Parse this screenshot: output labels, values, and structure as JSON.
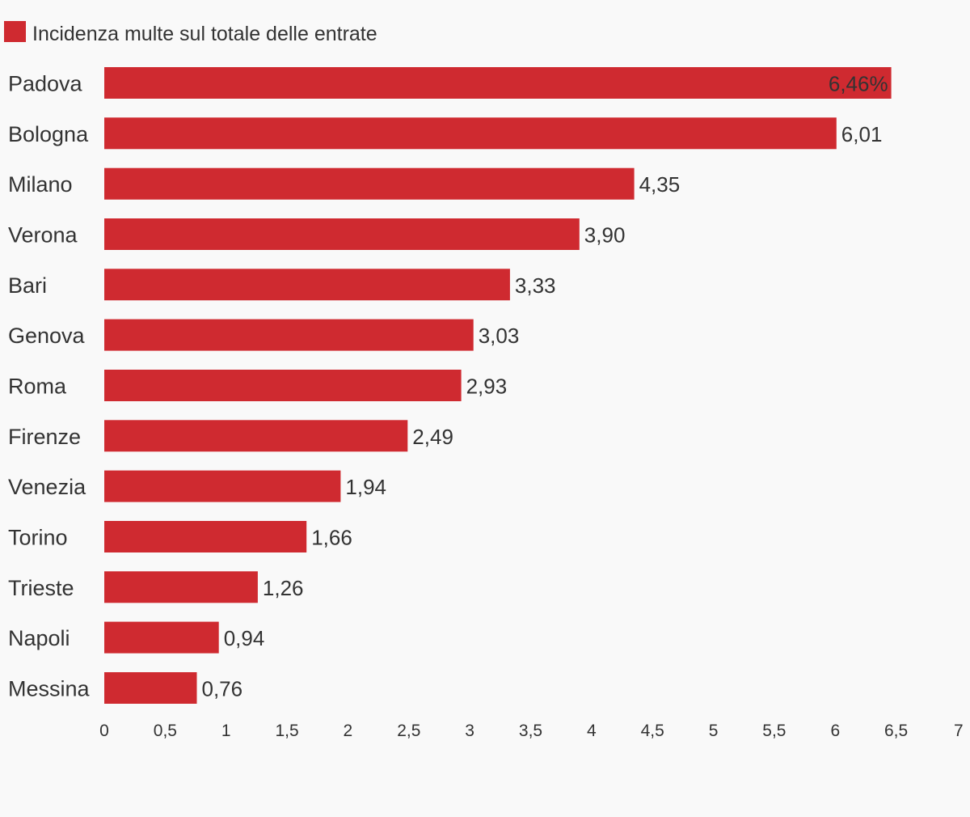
{
  "chart_data": {
    "type": "bar",
    "orientation": "horizontal",
    "legend": {
      "label": "Incidenza multe sul totale delle entrate",
      "position": "top-left"
    },
    "categories": [
      "Padova",
      "Bologna",
      "Milano",
      "Verona",
      "Bari",
      "Genova",
      "Roma",
      "Firenze",
      "Venezia",
      "Torino",
      "Trieste",
      "Napoli",
      "Messina"
    ],
    "values": [
      6.46,
      6.01,
      4.35,
      3.9,
      3.33,
      3.03,
      2.93,
      2.49,
      1.94,
      1.66,
      1.26,
      0.94,
      0.76
    ],
    "value_labels": [
      "6,46%",
      "6,01",
      "4,35",
      "3,90",
      "3,33",
      "3,03",
      "2,93",
      "2,49",
      "1,94",
      "1,66",
      "1,26",
      "0,94",
      "0,76"
    ],
    "xlim": [
      0,
      7
    ],
    "x_ticks": [
      0,
      0.5,
      1,
      1.5,
      2,
      2.5,
      3,
      3.5,
      4,
      4.5,
      5,
      5.5,
      6,
      6.5,
      7
    ],
    "x_tick_labels": [
      "0",
      "0,5",
      "1",
      "1,5",
      "2",
      "2,5",
      "3",
      "3,5",
      "4",
      "4,5",
      "5",
      "5,5",
      "6",
      "6,5",
      "7"
    ],
    "grid": false,
    "colors": {
      "bar": "#cf2a30",
      "text": "#333333",
      "background": "#f9f9f9"
    }
  }
}
